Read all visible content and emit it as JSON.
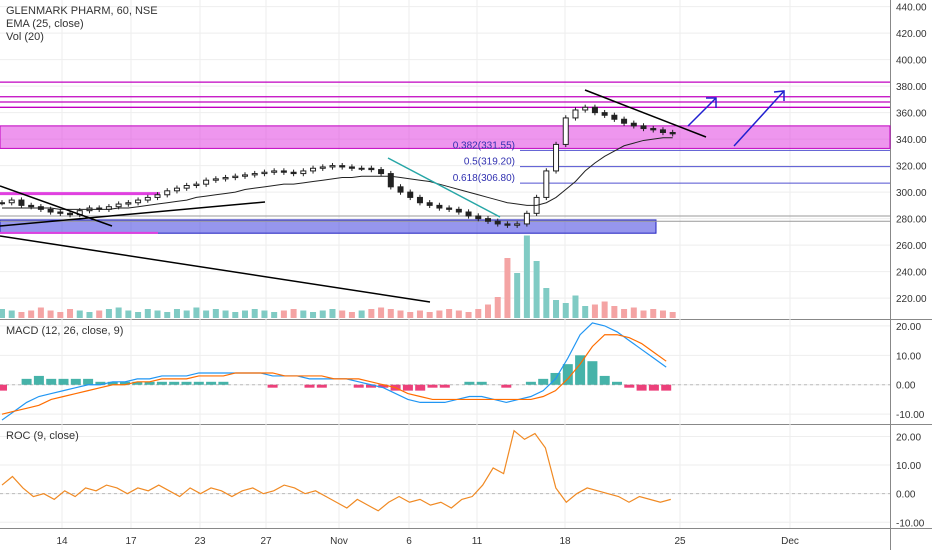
{
  "chart_data": [
    {
      "type": "candlestick",
      "panel": "price",
      "title": "GLENMARK PHARM, 60, NSE",
      "overlays": [
        "EMA (25, close)",
        "Vol (20)"
      ],
      "ylim": [
        205,
        445
      ],
      "y_ticks": [
        "440.00",
        "420.00",
        "400.00",
        "380.00",
        "360.00",
        "340.00",
        "320.00",
        "300.00",
        "280.00",
        "260.00",
        "240.00",
        "220.00"
      ],
      "x_ticks": [
        "14",
        "17",
        "23",
        "27",
        "Nov",
        "6",
        "11",
        "18",
        "25",
        "Dec"
      ],
      "fib_levels": [
        {
          "label": "0.382(331.55)",
          "value": 331.55
        },
        {
          "label": "0.5(319.20)",
          "value": 319.2
        },
        {
          "label": "0.618(306.80)",
          "value": 306.8
        }
      ],
      "series": [
        {
          "name": "close",
          "values": [
            292,
            294,
            290,
            289,
            287,
            285,
            284,
            283,
            286,
            288,
            287,
            289,
            291,
            292,
            294,
            296,
            298,
            301,
            303,
            305,
            306,
            309,
            310,
            311,
            312,
            313,
            314,
            315,
            316,
            315,
            314,
            316,
            318,
            319,
            320,
            319,
            318,
            318,
            317,
            314,
            304,
            300,
            296,
            292,
            290,
            288,
            287,
            285,
            282,
            280,
            278,
            276,
            275,
            276,
            284,
            296,
            316,
            336,
            356,
            362,
            364,
            360,
            358,
            355,
            352,
            350,
            348,
            347,
            345,
            344
          ]
        },
        {
          "name": "EMA (25, close)",
          "values": [
            288,
            288,
            288,
            288,
            288,
            288,
            287,
            287,
            287,
            287,
            287,
            287,
            288,
            288,
            289,
            290,
            291,
            292,
            293,
            294,
            296,
            297,
            298,
            299,
            300,
            302,
            303,
            304,
            305,
            306,
            306,
            307,
            308,
            309,
            310,
            311,
            311,
            312,
            312,
            312,
            312,
            311,
            310,
            309,
            308,
            306,
            304,
            302,
            300,
            298,
            296,
            294,
            292,
            291,
            290,
            290,
            292,
            296,
            302,
            308,
            316,
            322,
            327,
            331,
            335,
            337,
            339,
            340,
            341,
            341
          ]
        }
      ],
      "volume": [
        6,
        5,
        4,
        5,
        7,
        5,
        4,
        6,
        5,
        4,
        5,
        6,
        7,
        5,
        4,
        6,
        5,
        4,
        6,
        5,
        7,
        5,
        6,
        5,
        4,
        5,
        6,
        5,
        4,
        5,
        6,
        5,
        4,
        5,
        6,
        5,
        4,
        5,
        6,
        7,
        6,
        5,
        4,
        5,
        4,
        5,
        6,
        5,
        4,
        6,
        9,
        14,
        40,
        30,
        55,
        38,
        20,
        12,
        10,
        15,
        8,
        9,
        11,
        8,
        6,
        7,
        5,
        6,
        5,
        4
      ]
    },
    {
      "type": "line",
      "panel": "MACD",
      "title": "MACD (12, 26, close, 9)",
      "ylim": [
        -13,
        22
      ],
      "y_ticks": [
        "20.00",
        "10.00",
        "0.00",
        "-10.00"
      ],
      "series": [
        {
          "name": "MACD",
          "values": [
            -12,
            -9,
            -6,
            -4,
            -3,
            -2,
            -1,
            0,
            0,
            1,
            1,
            2,
            2,
            3,
            3,
            3,
            4,
            4,
            4,
            4,
            4,
            4,
            3,
            3,
            3,
            2,
            2,
            2,
            2,
            1,
            0,
            -1,
            -3,
            -5,
            -6,
            -6,
            -6,
            -5,
            -4,
            -4,
            -5,
            -6,
            -5,
            -4,
            -2,
            2,
            9,
            17,
            21,
            20,
            18,
            15,
            12,
            9,
            6
          ]
        },
        {
          "name": "Signal",
          "values": [
            -10,
            -9,
            -8,
            -7,
            -5,
            -4,
            -3,
            -2,
            -1,
            0,
            0,
            1,
            1,
            2,
            2,
            2,
            3,
            3,
            3,
            4,
            4,
            4,
            4,
            3,
            3,
            3,
            3,
            2,
            2,
            2,
            1,
            0,
            -1,
            -3,
            -4,
            -5,
            -5,
            -5,
            -5,
            -5,
            -5,
            -5,
            -5,
            -5,
            -4,
            -2,
            2,
            7,
            13,
            17,
            17,
            16,
            14,
            11,
            8
          ]
        }
      ]
    },
    {
      "type": "line",
      "panel": "ROC",
      "title": "ROC (9, close)",
      "ylim": [
        -12,
        24
      ],
      "y_ticks": [
        "20.00",
        "10.00",
        "0.00",
        "-10.00"
      ],
      "series": [
        {
          "name": "ROC",
          "values": [
            3,
            6,
            2,
            -1,
            0,
            -2,
            1,
            -1,
            2,
            1,
            3,
            2,
            0,
            2,
            1,
            3,
            1,
            -1,
            2,
            0,
            2,
            1,
            -1,
            1,
            2,
            0,
            1,
            3,
            2,
            0,
            1,
            -1,
            -3,
            -5,
            -2,
            -4,
            -6,
            -3,
            -1,
            -3,
            -2,
            -4,
            -3,
            -5,
            -2,
            -1,
            3,
            9,
            7,
            22,
            19,
            21,
            16,
            2,
            -3,
            0,
            2,
            1,
            0,
            -1,
            -3,
            -1,
            -2,
            -3,
            -2
          ]
        }
      ]
    }
  ]
}
